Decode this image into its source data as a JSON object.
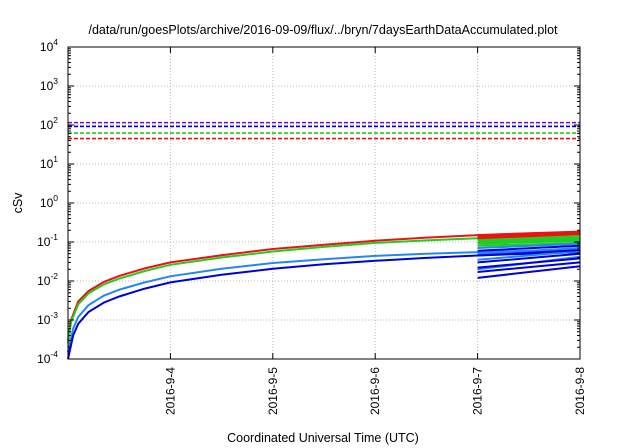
{
  "chart_data": {
    "type": "line",
    "title": "/data/run/goesPlots/archive/2016-09-09/flux/../bryn/7daysEarthDataAccumulated.plot",
    "xlabel": "Coordinated Universal Time (UTC)",
    "ylabel": "cSv",
    "y_scale": "log",
    "ylim": [
      0.0001,
      10000
    ],
    "xlim": [
      "2016-09-03",
      "2016-09-08"
    ],
    "x_ticks": [
      "2016-9-4",
      "2016-9-5",
      "2016-9-6",
      "2016-9-7",
      "2016-9-8"
    ],
    "x_tick_days": [
      1,
      2,
      3,
      4,
      5
    ],
    "y_ticks": [
      {
        "base": "10",
        "exp": "-4",
        "value": 0.0001
      },
      {
        "base": "10",
        "exp": "-3",
        "value": 0.001
      },
      {
        "base": "10",
        "exp": "-2",
        "value": 0.01
      },
      {
        "base": "10",
        "exp": "-1",
        "value": 0.1
      },
      {
        "base": "10",
        "exp": "0",
        "value": 1
      },
      {
        "base": "10",
        "exp": "1",
        "value": 10
      },
      {
        "base": "10",
        "exp": "2",
        "value": 100
      },
      {
        "base": "10",
        "exp": "3",
        "value": 1000
      },
      {
        "base": "10",
        "exp": "4",
        "value": 10000
      }
    ],
    "grid": true,
    "thresholds": [
      {
        "color": "#8800cc",
        "value": 115
      },
      {
        "color": "#0000dd",
        "value": 92
      },
      {
        "color": "#22cc22",
        "value": 62
      },
      {
        "color": "#ee1111",
        "value": 45
      }
    ],
    "series": [
      {
        "color": "#ee1111",
        "points": [
          [
            0,
            0.0003
          ],
          [
            0.03,
            0.001
          ],
          [
            0.1,
            0.003
          ],
          [
            0.2,
            0.0055
          ],
          [
            0.35,
            0.0095
          ],
          [
            0.5,
            0.0135
          ],
          [
            0.75,
            0.021
          ],
          [
            1,
            0.03
          ],
          [
            1.5,
            0.046
          ],
          [
            2,
            0.066
          ],
          [
            2.5,
            0.085
          ],
          [
            3,
            0.108
          ],
          [
            3.5,
            0.13
          ],
          [
            4,
            0.15
          ],
          [
            4.5,
            0.168
          ],
          [
            5,
            0.185
          ]
        ]
      },
      {
        "color": "#22cc22",
        "points": [
          [
            0,
            0.00025
          ],
          [
            0.03,
            0.0009
          ],
          [
            0.1,
            0.0025
          ],
          [
            0.2,
            0.0048
          ],
          [
            0.35,
            0.0082
          ],
          [
            0.5,
            0.0115
          ],
          [
            0.75,
            0.018
          ],
          [
            1,
            0.026
          ],
          [
            1.5,
            0.04
          ],
          [
            2,
            0.057
          ],
          [
            2.5,
            0.075
          ],
          [
            3,
            0.095
          ],
          [
            3.5,
            0.11
          ],
          [
            4,
            0.125
          ],
          [
            4.5,
            0.138
          ],
          [
            5,
            0.15
          ]
        ]
      },
      {
        "color": "#2288ee",
        "points": [
          [
            0,
            0.00015
          ],
          [
            0.05,
            0.0006
          ],
          [
            0.1,
            0.0012
          ],
          [
            0.2,
            0.0024
          ],
          [
            0.35,
            0.0042
          ],
          [
            0.5,
            0.006
          ],
          [
            0.75,
            0.0092
          ],
          [
            1,
            0.0132
          ],
          [
            1.5,
            0.0205
          ],
          [
            2,
            0.029
          ],
          [
            2.5,
            0.036
          ],
          [
            3,
            0.044
          ],
          [
            3.5,
            0.05
          ],
          [
            4,
            0.055
          ],
          [
            4.5,
            0.06
          ],
          [
            5,
            0.065
          ]
        ]
      },
      {
        "color": "#0000dd",
        "points": [
          [
            0,
            0.0001
          ],
          [
            0.05,
            0.0004
          ],
          [
            0.1,
            0.0008
          ],
          [
            0.2,
            0.0016
          ],
          [
            0.35,
            0.0028
          ],
          [
            0.5,
            0.004
          ],
          [
            0.75,
            0.0064
          ],
          [
            1,
            0.0092
          ],
          [
            1.5,
            0.0145
          ],
          [
            2,
            0.0205
          ],
          [
            2.5,
            0.027
          ],
          [
            3,
            0.033
          ],
          [
            3.5,
            0.039
          ],
          [
            4,
            0.045
          ],
          [
            4.5,
            0.05
          ],
          [
            5,
            0.055
          ]
        ]
      },
      {
        "color": "#22cc22",
        "points": [
          [
            4,
            0.13
          ],
          [
            5,
            0.165
          ]
        ]
      },
      {
        "color": "#22cc22",
        "points": [
          [
            4,
            0.12
          ],
          [
            5,
            0.145
          ]
        ]
      },
      {
        "color": "#22cc22",
        "points": [
          [
            4,
            0.11
          ],
          [
            5,
            0.13
          ]
        ]
      },
      {
        "color": "#22cc22",
        "points": [
          [
            4,
            0.1
          ],
          [
            5,
            0.118
          ]
        ]
      },
      {
        "color": "#22cc22",
        "points": [
          [
            4,
            0.09
          ],
          [
            5,
            0.108
          ]
        ]
      },
      {
        "color": "#22cc22",
        "points": [
          [
            4,
            0.08
          ],
          [
            5,
            0.095
          ]
        ]
      },
      {
        "color": "#ee1111",
        "points": [
          [
            4,
            0.14
          ],
          [
            5,
            0.175
          ]
        ]
      },
      {
        "color": "#ee1111",
        "points": [
          [
            4,
            0.125
          ],
          [
            5,
            0.16
          ]
        ]
      },
      {
        "color": "#2288ee",
        "points": [
          [
            4,
            0.07
          ],
          [
            5,
            0.09
          ]
        ]
      },
      {
        "color": "#2288ee",
        "points": [
          [
            4,
            0.05
          ],
          [
            5,
            0.07
          ]
        ]
      },
      {
        "color": "#2288ee",
        "points": [
          [
            4,
            0.035
          ],
          [
            5,
            0.058
          ]
        ]
      },
      {
        "color": "#2288ee",
        "points": [
          [
            4,
            0.02
          ],
          [
            5,
            0.042
          ]
        ]
      },
      {
        "color": "#0000dd",
        "points": [
          [
            4,
            0.06
          ],
          [
            5,
            0.08
          ]
        ]
      },
      {
        "color": "#0000dd",
        "points": [
          [
            4,
            0.045
          ],
          [
            5,
            0.062
          ]
        ]
      },
      {
        "color": "#0000dd",
        "points": [
          [
            4,
            0.03
          ],
          [
            5,
            0.05
          ]
        ]
      },
      {
        "color": "#0000dd",
        "points": [
          [
            4,
            0.022
          ],
          [
            5,
            0.038
          ]
        ]
      },
      {
        "color": "#0000dd",
        "points": [
          [
            4,
            0.017
          ],
          [
            5,
            0.03
          ]
        ]
      },
      {
        "color": "#0000dd",
        "points": [
          [
            4,
            0.012
          ],
          [
            5,
            0.024
          ]
        ]
      }
    ]
  }
}
